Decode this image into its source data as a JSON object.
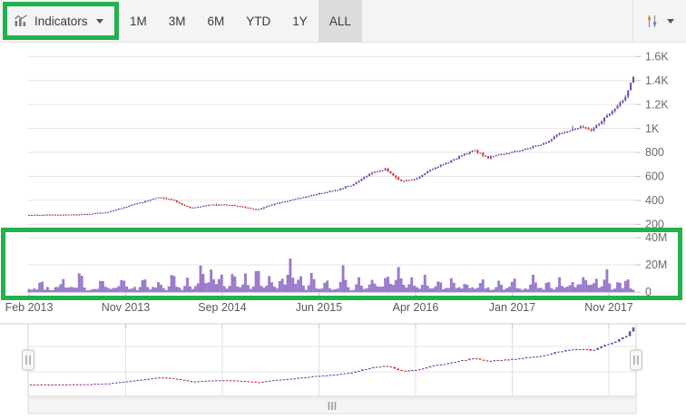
{
  "toolbar": {
    "indicators_label": "Indicators",
    "periods": [
      "1M",
      "3M",
      "6M",
      "YTD",
      "1Y",
      "ALL"
    ],
    "selected_period": "ALL"
  },
  "annotations": {
    "color": "#22b14c",
    "boxes": [
      "indicators-dropdown",
      "volume-pane"
    ]
  },
  "navigator": {
    "left_grip": "II",
    "right_grip": "II",
    "scrollbar_grip": "III"
  },
  "chart_data": {
    "type": "candlestick",
    "x_labels": [
      "Feb 2013",
      "Nov 2013",
      "Sep 2014",
      "Jun 2015",
      "Apr 2016",
      "Jan 2017",
      "Nov 2017"
    ],
    "price_pane": {
      "type": "candlestick",
      "y_ticks": [
        "1.6K",
        "1.4K",
        "1.2K",
        "1K",
        "800",
        "600",
        "400",
        "200"
      ],
      "y_tick_values": [
        1600,
        1400,
        1200,
        1000,
        800,
        600,
        400,
        200
      ],
      "ylim": [
        200,
        1600
      ],
      "num_candles": 230,
      "trend_keypoints": [
        [
          0,
          278
        ],
        [
          0.05,
          279
        ],
        [
          0.09,
          284
        ],
        [
          0.13,
          300
        ],
        [
          0.17,
          360
        ],
        [
          0.215,
          424
        ],
        [
          0.24,
          398
        ],
        [
          0.265,
          336
        ],
        [
          0.3,
          362
        ],
        [
          0.33,
          364
        ],
        [
          0.355,
          344
        ],
        [
          0.378,
          322
        ],
        [
          0.41,
          378
        ],
        [
          0.44,
          408
        ],
        [
          0.475,
          452
        ],
        [
          0.505,
          482
        ],
        [
          0.535,
          528
        ],
        [
          0.565,
          628
        ],
        [
          0.59,
          662
        ],
        [
          0.615,
          558
        ],
        [
          0.64,
          574
        ],
        [
          0.665,
          660
        ],
        [
          0.695,
          722
        ],
        [
          0.735,
          818
        ],
        [
          0.76,
          758
        ],
        [
          0.782,
          784
        ],
        [
          0.806,
          806
        ],
        [
          0.83,
          846
        ],
        [
          0.856,
          878
        ],
        [
          0.876,
          956
        ],
        [
          0.896,
          990
        ],
        [
          0.916,
          1012
        ],
        [
          0.931,
          974
        ],
        [
          0.948,
          1068
        ],
        [
          0.962,
          1126
        ],
        [
          0.974,
          1186
        ],
        [
          0.987,
          1264
        ],
        [
          1,
          1432
        ]
      ]
    },
    "volume_pane": {
      "type": "area",
      "y_ticks": [
        "40M",
        "20M",
        "0"
      ],
      "y_tick_values": [
        40,
        20,
        0
      ],
      "ylim_millions": [
        0,
        40
      ],
      "base_level_millions": 2.5,
      "spikes_t_millions_sigma": [
        [
          0.02,
          5,
          0.004
        ],
        [
          0.055,
          7,
          0.004
        ],
        [
          0.085,
          13,
          0.004
        ],
        [
          0.12,
          6,
          0.004
        ],
        [
          0.155,
          8,
          0.004
        ],
        [
          0.19,
          9,
          0.004
        ],
        [
          0.215,
          6,
          0.004
        ],
        [
          0.238,
          13,
          0.004
        ],
        [
          0.262,
          8,
          0.004
        ],
        [
          0.285,
          16,
          0.004
        ],
        [
          0.302,
          12,
          0.004
        ],
        [
          0.318,
          9,
          0.004
        ],
        [
          0.338,
          13,
          0.004
        ],
        [
          0.358,
          11,
          0.004
        ],
        [
          0.378,
          17,
          0.004
        ],
        [
          0.398,
          10,
          0.004
        ],
        [
          0.418,
          7,
          0.004
        ],
        [
          0.432,
          19,
          0.004
        ],
        [
          0.448,
          9,
          0.004
        ],
        [
          0.468,
          13,
          0.004
        ],
        [
          0.492,
          8,
          0.004
        ],
        [
          0.52,
          18,
          0.004
        ],
        [
          0.545,
          8,
          0.004
        ],
        [
          0.568,
          7,
          0.004
        ],
        [
          0.592,
          6,
          0.004
        ],
        [
          0.612,
          12,
          0.004
        ],
        [
          0.633,
          8,
          0.004
        ],
        [
          0.655,
          11,
          0.004
        ],
        [
          0.678,
          7,
          0.004
        ],
        [
          0.7,
          8,
          0.004
        ],
        [
          0.722,
          5,
          0.004
        ],
        [
          0.75,
          6,
          0.004
        ],
        [
          0.778,
          5,
          0.004
        ],
        [
          0.802,
          7,
          0.004
        ],
        [
          0.835,
          11,
          0.004
        ],
        [
          0.858,
          6,
          0.004
        ],
        [
          0.878,
          8,
          0.004
        ],
        [
          0.898,
          5,
          0.004
        ],
        [
          0.918,
          7,
          0.004
        ],
        [
          0.938,
          6,
          0.004
        ],
        [
          0.956,
          15,
          0.004
        ],
        [
          0.976,
          7,
          0.004
        ],
        [
          0.99,
          8,
          0.004
        ],
        [
          0.43,
          3,
          0.018
        ],
        [
          0.6,
          4,
          0.02
        ],
        [
          0.92,
          3,
          0.018
        ],
        [
          0.3,
          3,
          0.02
        ]
      ]
    },
    "range_navigator": {
      "type": "candlestick",
      "num_candles": 170,
      "uses": "same trend_keypoints as price_pane, full range selected"
    },
    "colors": {
      "bull": "#7146b2",
      "bear": "#cc2f34",
      "volume_fill": "#8a63c6",
      "gridline": "#e6e6e6",
      "axis_line": "#d4d4d4",
      "tick": "#c4c4c4",
      "axis_label": "#6b6b6b",
      "x_label": "#595959"
    },
    "legend": "off",
    "grid": "on"
  }
}
